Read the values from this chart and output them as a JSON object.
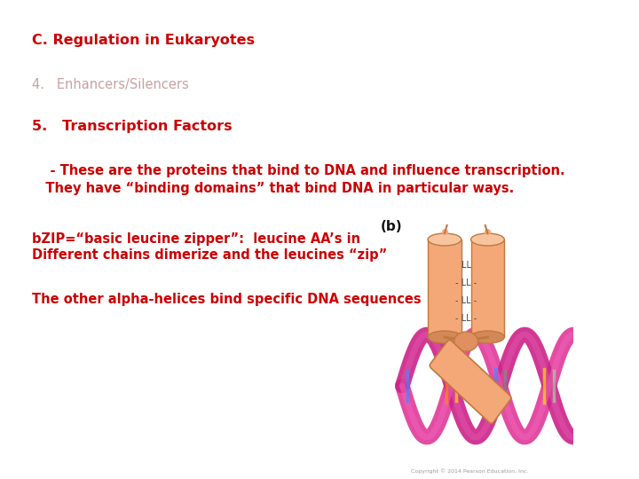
{
  "background_color": "#ffffff",
  "title": "C. Regulation in Eukaryotes",
  "title_color": "#cc0000",
  "title_fontsize": 11.5,
  "line2_text": "4.   Enhancers/Silencers",
  "line2_color": "#c9a0a0",
  "line2_fontsize": 10.5,
  "line3_text": "5.   Transcription Factors",
  "line3_color": "#cc0000",
  "line3_fontsize": 11.5,
  "line4a_text": "    - These are the proteins that bind to DNA and influence transcription.",
  "line4b_text": "   They have “binding domains” that bind DNA in particular ways.",
  "line4_color": "#cc0000",
  "line4_fontsize": 10.5,
  "line5a_text": "bZIP=“basic leucine zipper”:  leucine AA’s in",
  "line5b_text": "Different chains dimerize and the leucines “zip”",
  "line5_color": "#cc0000",
  "line5_fontsize": 10.5,
  "line6_text": "The other alpha-helices bind specific DNA sequences",
  "line6_color": "#cc0000",
  "line6_fontsize": 10.5,
  "label_b_text": "(b)",
  "label_b_color": "#111111",
  "label_b_fontsize": 11,
  "cyl_face": "#F4A878",
  "cyl_top": "#F8C4A0",
  "cyl_bot": "#D48858",
  "cyl_edge": "#C07840",
  "ll_color": "#444444",
  "ll_fontsize": 7,
  "dna_color1": "#E0409A",
  "dna_color2": "#CC2288",
  "copyright_text": "Copyright © 2014 Pearson Education, Inc.",
  "copyright_color": "#999999",
  "copyright_fontsize": 4.5
}
